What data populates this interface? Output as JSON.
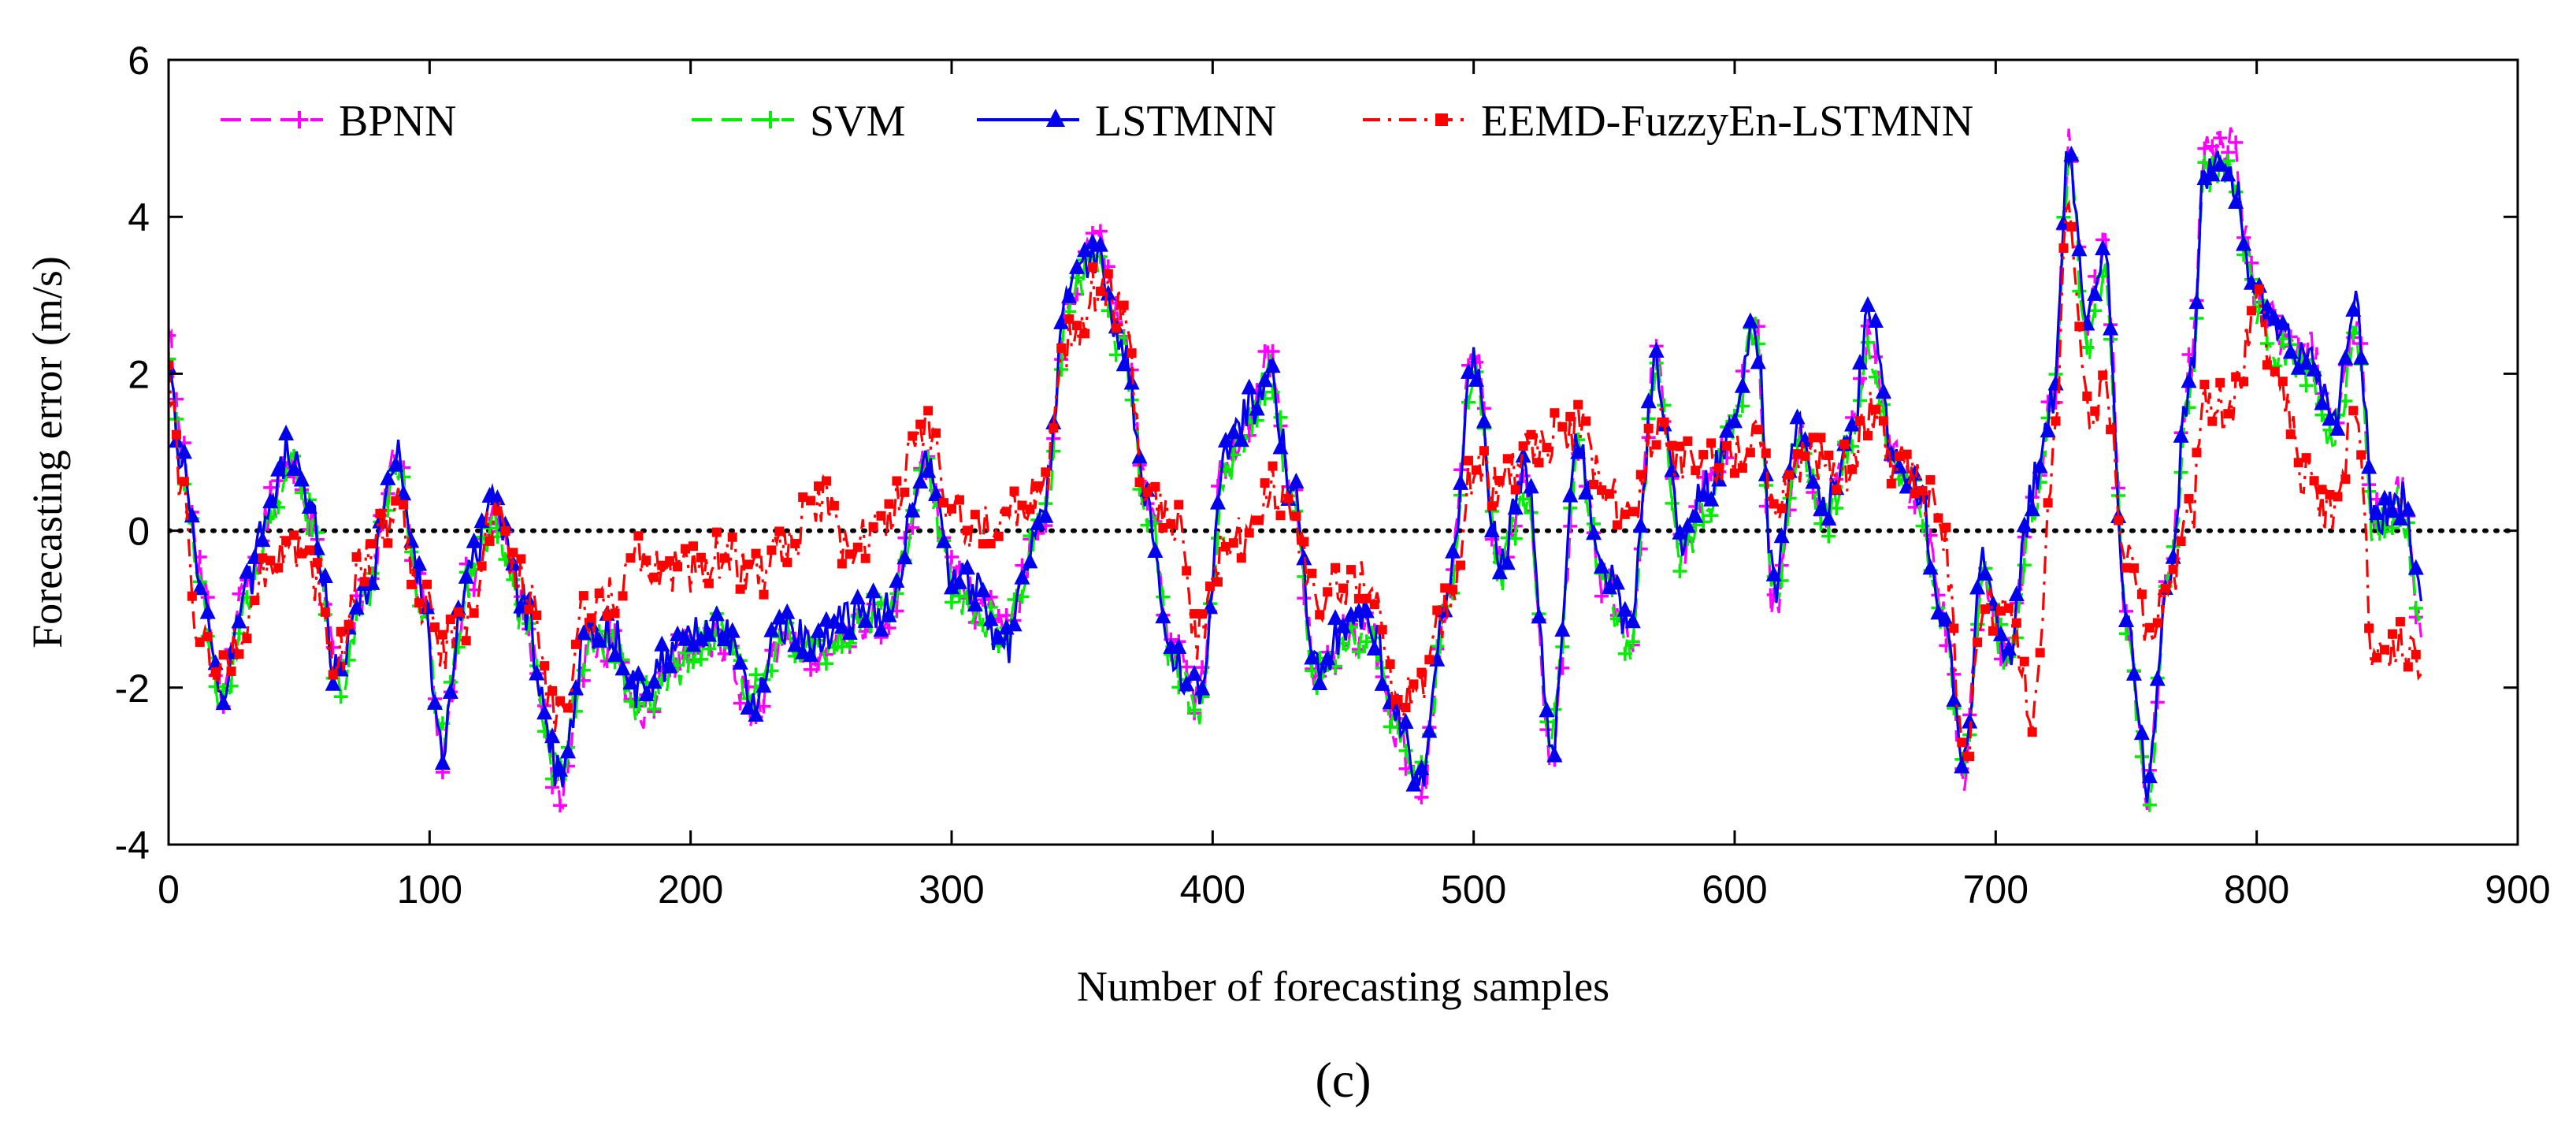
{
  "chart_data": {
    "type": "line",
    "title": "",
    "caption": "(c)",
    "xlabel": "Number of forecasting samples",
    "ylabel": "Forecasting error (m/s)",
    "xlim": [
      0,
      900
    ],
    "ylim": [
      -4,
      6
    ],
    "xticks": [
      0,
      100,
      200,
      300,
      400,
      500,
      600,
      700,
      800,
      900
    ],
    "yticks": [
      -4,
      -2,
      0,
      2,
      4,
      6
    ],
    "xtick_labels": [
      "0",
      "100",
      "200",
      "300",
      "400",
      "500",
      "600",
      "700",
      "800",
      "900"
    ],
    "ytick_labels": [
      "-4",
      "-2",
      "0",
      "2",
      "4",
      "6"
    ],
    "reference_line": 0,
    "legend_position": "top-left",
    "grid": false,
    "series_length": 864,
    "key_points": {
      "x": [
        0,
        5,
        12,
        20,
        30,
        40,
        46,
        55,
        65,
        75,
        88,
        96,
        105,
        115,
        125,
        135,
        150,
        160,
        170,
        180,
        195,
        210,
        225,
        235,
        250,
        260,
        275,
        290,
        300,
        310,
        320,
        335,
        345,
        355,
        365,
        375,
        385,
        395,
        405,
        415,
        422,
        430,
        440,
        450,
        460,
        470,
        480,
        490,
        500,
        510,
        520,
        530,
        540,
        550,
        560,
        570,
        580,
        590,
        600,
        608,
        615,
        625,
        635,
        645,
        652,
        660,
        670,
        680,
        688,
        695,
        705,
        715,
        722,
        728,
        735,
        742,
        750,
        758,
        766,
        775,
        780,
        790,
        800,
        810,
        820,
        830,
        838,
        845,
        855,
        864
      ]
    },
    "series": [
      {
        "name": "BPNN",
        "color": "#ff00ff",
        "marker": "plus",
        "dash": "dashed",
        "values": [
          2.4,
          1.0,
          -0.6,
          -2.0,
          -0.8,
          0.4,
          1.0,
          0.2,
          -1.8,
          -0.9,
          1.0,
          -0.7,
          -2.8,
          -0.6,
          0.3,
          -1.0,
          -3.3,
          -1.6,
          -1.4,
          -2.4,
          -1.6,
          -1.4,
          -2.3,
          -1.3,
          -1.6,
          -1.2,
          -1.1,
          0.8,
          -0.6,
          -0.9,
          -1.3,
          0.2,
          3.0,
          3.7,
          2.5,
          0.5,
          -1.6,
          -2.1,
          1.0,
          1.5,
          2.2,
          0.5,
          -1.8,
          -1.4,
          -1.2,
          -2.6,
          -3.3,
          -0.9,
          2.3,
          -0.5,
          0.6,
          -2.9,
          1.0,
          -0.6,
          -1.3,
          2.2,
          -0.3,
          0.5,
          1.4,
          2.6,
          -1.0,
          1.2,
          0.2,
          1.2,
          2.4,
          1.0,
          0.5,
          -1.1,
          -3.1,
          -0.5,
          -1.6,
          0.5,
          1.6,
          4.9,
          2.6,
          3.6,
          -1.1,
          -3.4,
          -0.6,
          2.1,
          4.8,
          4.9,
          3.0,
          2.5,
          2.3,
          1.4,
          2.8,
          0.2,
          0.5,
          -1.3
        ]
      },
      {
        "name": "SVM",
        "color": "#00ee00",
        "marker": "plus",
        "dash": "dashed",
        "values": [
          2.1,
          0.8,
          -0.7,
          -2.3,
          -0.9,
          0.3,
          0.9,
          0.1,
          -2.0,
          -1.0,
          0.9,
          -0.8,
          -2.6,
          -0.7,
          0.2,
          -1.1,
          -3.2,
          -1.5,
          -1.5,
          -2.2,
          -1.7,
          -1.3,
          -2.1,
          -1.4,
          -1.5,
          -1.3,
          -1.0,
          0.7,
          -0.7,
          -1.0,
          -1.4,
          0.1,
          2.9,
          3.5,
          2.3,
          0.3,
          -1.8,
          -2.2,
          0.8,
          1.4,
          2.0,
          0.4,
          -1.9,
          -1.5,
          -1.3,
          -2.4,
          -3.1,
          -1.0,
          2.1,
          -0.6,
          0.5,
          -2.6,
          0.9,
          -0.7,
          -1.4,
          2.0,
          -0.4,
          0.4,
          1.3,
          2.7,
          -0.8,
          1.1,
          0.1,
          1.1,
          2.3,
          0.9,
          0.4,
          -1.2,
          -2.9,
          -0.6,
          -1.7,
          0.4,
          1.5,
          4.6,
          2.4,
          3.3,
          -1.2,
          -3.5,
          -0.7,
          1.9,
          4.5,
          4.6,
          2.8,
          2.2,
          2.0,
          1.2,
          2.6,
          0.0,
          0.3,
          -1.4
        ]
      },
      {
        "name": "LSTMNN",
        "color": "#0000ee",
        "marker": "triangle",
        "dash": "solid",
        "values": [
          2.0,
          0.9,
          -0.6,
          -2.1,
          -0.7,
          0.4,
          1.0,
          0.2,
          -1.9,
          -0.8,
          0.9,
          -0.6,
          -2.7,
          -0.5,
          0.3,
          -0.9,
          -3.1,
          -1.4,
          -1.3,
          -2.1,
          -1.5,
          -1.2,
          -2.2,
          -1.2,
          -1.4,
          -1.1,
          -1.0,
          0.8,
          -0.5,
          -0.8,
          -1.5,
          0.3,
          3.1,
          3.5,
          2.4,
          0.4,
          -1.7,
          -2.0,
          0.9,
          1.6,
          2.0,
          0.6,
          -1.7,
          -1.3,
          -1.1,
          -2.4,
          -3.2,
          -0.8,
          2.2,
          -0.4,
          0.7,
          -2.7,
          1.1,
          -0.5,
          -1.2,
          2.1,
          -0.2,
          0.6,
          1.5,
          2.6,
          -0.7,
          1.3,
          0.3,
          1.3,
          2.8,
          1.1,
          0.6,
          -1.0,
          -3.0,
          -0.4,
          -1.5,
          0.6,
          1.7,
          4.8,
          2.7,
          3.4,
          -1.0,
          -3.2,
          -0.5,
          2.0,
          4.6,
          4.6,
          2.9,
          2.4,
          2.2,
          1.5,
          3.0,
          0.2,
          0.4,
          -0.9
        ]
      },
      {
        "name": "EEMD-FuzzyEn-LSTMNN",
        "color": "#ff0000",
        "marker": "square",
        "dash": "dashdot",
        "values": [
          2.0,
          0.4,
          -1.5,
          -1.7,
          -1.2,
          -0.4,
          -0.2,
          -0.6,
          -1.6,
          -0.4,
          0.3,
          -0.8,
          -1.5,
          -1.2,
          0.3,
          -0.6,
          -2.5,
          -1.0,
          -0.8,
          -0.4,
          -0.6,
          -0.3,
          -0.6,
          -0.2,
          0.4,
          -0.3,
          0.2,
          1.3,
          0.2,
          0.1,
          0.1,
          0.5,
          2.4,
          3.1,
          2.8,
          0.4,
          0.2,
          -1.4,
          -0.2,
          0.0,
          0.6,
          0.2,
          -1.0,
          -0.6,
          -0.6,
          -2.2,
          -2.0,
          -1.0,
          0.8,
          0.5,
          1.0,
          1.2,
          1.3,
          0.5,
          0.2,
          1.3,
          0.8,
          0.9,
          1.0,
          1.2,
          0.3,
          0.8,
          0.9,
          0.8,
          1.5,
          0.9,
          0.7,
          0.0,
          -3.1,
          -1.0,
          -1.0,
          -2.4,
          0.9,
          4.1,
          1.5,
          1.9,
          -0.3,
          -1.3,
          -0.8,
          0.1,
          1.8,
          1.5,
          2.8,
          1.7,
          0.6,
          0.1,
          1.6,
          -1.6,
          -1.4,
          -1.9
        ]
      }
    ]
  }
}
